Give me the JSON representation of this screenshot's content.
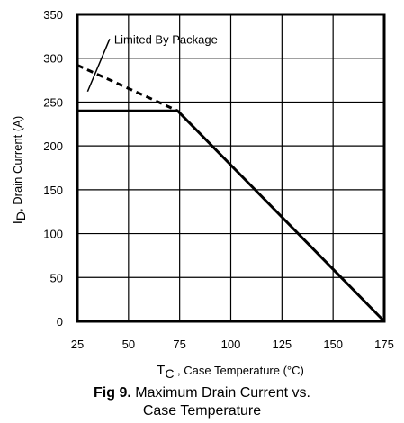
{
  "chart_data": {
    "type": "line",
    "xlabel": {
      "main": "T",
      "sub": "C",
      "rest": " , Case Temperature (°C)"
    },
    "ylabel": {
      "main": "I",
      "sub": "D",
      "rest": ",  Drain Current (A)"
    },
    "xlim": [
      25,
      175
    ],
    "ylim": [
      0,
      350
    ],
    "x_ticks": [
      25,
      50,
      75,
      100,
      125,
      150,
      175
    ],
    "y_ticks": [
      0,
      50,
      100,
      150,
      200,
      250,
      300,
      350
    ],
    "grid": true,
    "series": [
      {
        "style": "solid",
        "color": "#000000",
        "points": [
          [
            25,
            240
          ],
          [
            74,
            240
          ],
          [
            175,
            0
          ]
        ]
      },
      {
        "style": "dashed",
        "color": "#000000",
        "points": [
          [
            25,
            292
          ],
          [
            74,
            240
          ]
        ]
      }
    ],
    "annotations": [
      {
        "text": "Limited By Package",
        "arrow_to": [
          30,
          262
        ],
        "anchor": [
          43,
          322
        ]
      }
    ]
  },
  "caption": {
    "fig_label": "Fig 9.",
    "line1": "Maximum Drain Current vs.",
    "line2": "Case Temperature"
  }
}
